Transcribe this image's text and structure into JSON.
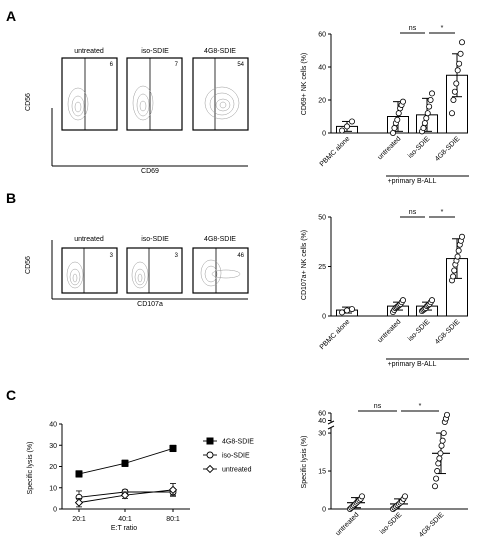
{
  "panels": {
    "A": {
      "letter": "A",
      "flow": {
        "y_axis_label": "CD56",
        "x_axis_label": "CD69",
        "plots": [
          {
            "title": "untreated",
            "value": "6"
          },
          {
            "title": "iso-SDIE",
            "value": "7"
          },
          {
            "title": "4G8-SDIE",
            "value": "54"
          }
        ]
      },
      "chart_data": {
        "type": "bar",
        "ylabel": "CD69+ NK cells (%)",
        "ylim": [
          0,
          60
        ],
        "yticks": [
          0,
          20,
          40,
          60
        ],
        "categories": [
          "PBMC alone",
          "untreated",
          "iso-SDIE",
          "4G8-SDIE"
        ],
        "values": [
          4,
          10,
          11,
          35
        ],
        "errors": [
          3,
          9,
          10,
          13
        ],
        "points": [
          [
            1.5,
            4,
            7
          ],
          [
            0,
            3,
            6,
            8,
            12,
            15,
            17,
            19
          ],
          [
            1,
            3,
            6,
            9,
            12,
            16,
            20,
            24
          ],
          [
            12,
            20,
            25,
            30,
            38,
            42,
            48,
            55
          ]
        ],
        "group_label": "+primary B-ALL",
        "significance": [
          {
            "from": "untreated",
            "to": "iso-SDIE",
            "label": "ns"
          },
          {
            "from": "iso-SDIE",
            "to": "4G8-SDIE",
            "label": "*"
          }
        ]
      }
    },
    "B": {
      "letter": "B",
      "flow": {
        "y_axis_label": "CD56",
        "x_axis_label": "CD107a",
        "plots": [
          {
            "title": "untreated",
            "value": "3"
          },
          {
            "title": "iso-SDIE",
            "value": "3"
          },
          {
            "title": "4G8-SDIE",
            "value": "46"
          }
        ]
      },
      "chart_data": {
        "type": "bar",
        "ylabel": "CD107a+ NK cells (%)",
        "ylim": [
          0,
          50
        ],
        "yticks": [
          0,
          25,
          50
        ],
        "categories": [
          "PBMC alone",
          "untreated",
          "iso-SDIE",
          "4G8-SDIE"
        ],
        "values": [
          3,
          5,
          5,
          29
        ],
        "errors": [
          1.5,
          2,
          2,
          10
        ],
        "points": [
          [
            1.8,
            2.8,
            3.5
          ],
          [
            2,
            3,
            4,
            4.5,
            5,
            5.5,
            6,
            7,
            8
          ],
          [
            2.5,
            3,
            3.5,
            4,
            5,
            5.5,
            6,
            7,
            8
          ],
          [
            18,
            20,
            23,
            26,
            28,
            30,
            33,
            36,
            38,
            40
          ]
        ],
        "group_label": "+primary B-ALL",
        "significance": [
          {
            "from": "untreated",
            "to": "iso-SDIE",
            "label": "ns"
          },
          {
            "from": "iso-SDIE",
            "to": "4G8-SDIE",
            "label": "*"
          }
        ]
      }
    },
    "C": {
      "letter": "C",
      "line_chart": {
        "type": "line",
        "ylabel": "Specific lysis  (%)",
        "xlabel": "E:T ratio",
        "categories": [
          "20:1",
          "40:1",
          "80:1"
        ],
        "ylim": [
          0,
          40
        ],
        "yticks": [
          0,
          10,
          20,
          30,
          40
        ],
        "series": [
          {
            "name": "4G8-SDIE",
            "marker": "square",
            "values": [
              16.5,
              21.5,
              28.5
            ],
            "errors": [
              1.5,
              1.5,
              1.5
            ]
          },
          {
            "name": "iso-SDIE",
            "marker": "circle",
            "values": [
              5.5,
              8,
              8
            ],
            "errors": [
              3,
              1,
              1.5
            ]
          },
          {
            "name": "untreated",
            "marker": "diamond",
            "values": [
              3,
              6.5,
              9
            ],
            "errors": [
              2,
              1.5,
              3
            ]
          }
        ]
      },
      "chart_data": {
        "type": "scatter",
        "ylabel": "Specific lysis  (%)",
        "ylim": [
          0,
          60
        ],
        "yticks": [
          "0",
          "15",
          "30",
          "40",
          "60"
        ],
        "broken_axis": {
          "lower": [
            0,
            32
          ],
          "upper": [
            36,
            60
          ]
        },
        "categories": [
          "untreated",
          "iso-SDIE",
          "4G8-SDIE"
        ],
        "values": [
          2.5,
          2,
          22
        ],
        "errors": [
          2,
          2,
          8
        ],
        "points": [
          [
            0,
            0.5,
            1,
            1.5,
            2,
            2.5,
            3,
            3.5,
            4,
            5
          ],
          [
            0,
            0.5,
            1,
            1.5,
            2,
            2.5,
            3,
            4,
            5
          ],
          [
            9,
            12,
            15,
            18,
            20,
            22,
            25,
            27,
            30,
            36,
            45,
            55
          ]
        ],
        "significance": [
          {
            "from": "untreated",
            "to": "iso-SDIE",
            "label": "ns"
          },
          {
            "from": "iso-SDIE",
            "to": "4G8-SDIE",
            "label": "*"
          }
        ]
      }
    }
  }
}
